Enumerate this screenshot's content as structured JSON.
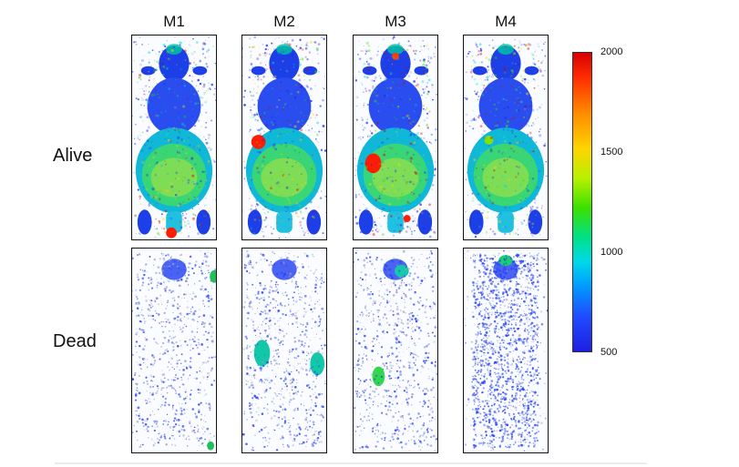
{
  "figure": {
    "columns": [
      "M1",
      "M2",
      "M3",
      "M4"
    ],
    "rows": [
      "Alive",
      "Dead"
    ]
  },
  "colorbar": {
    "ticks": [
      "2000",
      "1500",
      "1000",
      "500"
    ],
    "colors": [
      "#d60000",
      "#ffd400",
      "#3be000",
      "#00d8e8",
      "#1f4dff",
      "#1e1ee0"
    ]
  }
}
